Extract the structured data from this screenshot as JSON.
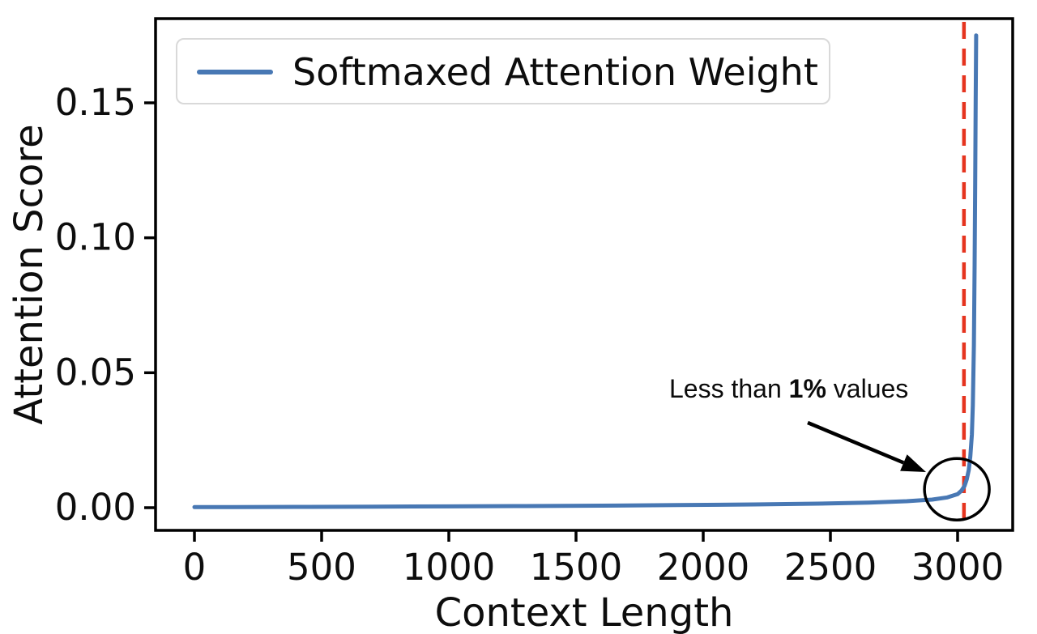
{
  "chart_data": {
    "type": "line",
    "title": "",
    "xlabel": "Context Length",
    "ylabel": "Attention Score",
    "legend": [
      "Softmaxed Attention Weight"
    ],
    "legend_position": "upper left",
    "grid": false,
    "xlim": [
      -150,
      3220
    ],
    "ylim": [
      -0.008,
      0.181
    ],
    "xticks": {
      "values": [
        0,
        500,
        1000,
        1500,
        2000,
        2500,
        3000
      ],
      "labels": [
        "0",
        "500",
        "1000",
        "1500",
        "2000",
        "2500",
        "3000"
      ]
    },
    "yticks": {
      "values": [
        0,
        0.05,
        0.1,
        0.15
      ],
      "labels": [
        "0.00",
        "0.05",
        "0.10",
        "0.15"
      ]
    },
    "series": [
      {
        "name": "Softmaxed Attention Weight",
        "color": "#4878b4",
        "x": [
          0,
          150,
          400,
          700,
          1000,
          1300,
          1600,
          1900,
          2200,
          2450,
          2650,
          2800,
          2900,
          2960,
          3000,
          3015,
          3027,
          3036,
          3044,
          3050,
          3056,
          3060,
          3064,
          3067,
          3069,
          3071,
          3073
        ],
        "y": [
          0.0002,
          0.00025,
          0.0003,
          0.00038,
          0.00048,
          0.0006,
          0.00075,
          0.00095,
          0.0012,
          0.0015,
          0.0019,
          0.0024,
          0.003,
          0.0038,
          0.005,
          0.0063,
          0.008,
          0.0105,
          0.014,
          0.019,
          0.027,
          0.038,
          0.06,
          0.09,
          0.12,
          0.15,
          0.175
        ]
      }
    ],
    "vline": {
      "x": 3025,
      "color": "#e5341f",
      "style": "dashed"
    },
    "annotation": {
      "prefix": "Less than ",
      "bold": "1%",
      "suffix": " values",
      "target": {
        "x": 2997,
        "y": 0.0068
      }
    }
  },
  "colors": {
    "axis": "#000000",
    "background": "#ffffff",
    "legend_border": "#d9d9d9",
    "series_blue": "#4878b4",
    "vline_red": "#e5341f"
  }
}
